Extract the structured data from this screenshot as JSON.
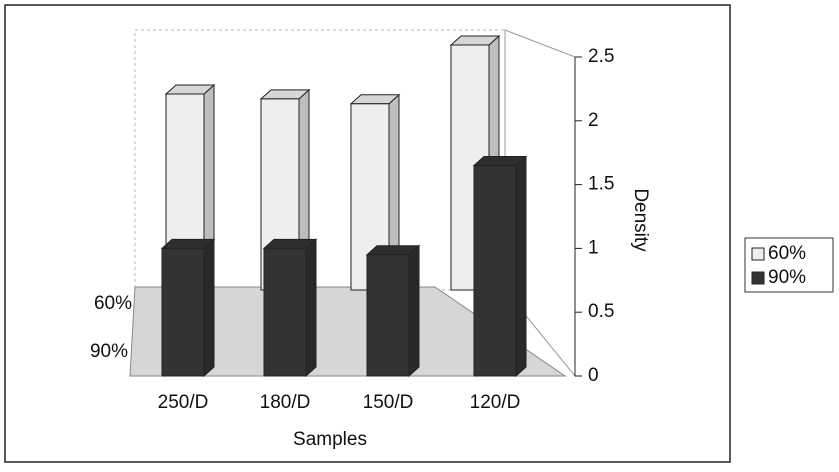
{
  "chart_data": {
    "type": "bar3d",
    "categories": [
      "250/D",
      "180/D",
      "150/D",
      "120/D"
    ],
    "series": [
      {
        "name": "60%",
        "color": "#eeeeee",
        "values": [
          2.0,
          1.95,
          1.9,
          2.5
        ]
      },
      {
        "name": "90%",
        "color": "#333333",
        "values": [
          1.0,
          1.0,
          0.95,
          1.65
        ]
      }
    ],
    "depth_labels": [
      "60%",
      "90%"
    ],
    "ylim": [
      0,
      2.5
    ],
    "yticks": [
      0,
      0.5,
      1,
      1.5,
      2,
      2.5
    ],
    "ylabel": "Density",
    "xlabel": "Samples",
    "legend": "right"
  }
}
